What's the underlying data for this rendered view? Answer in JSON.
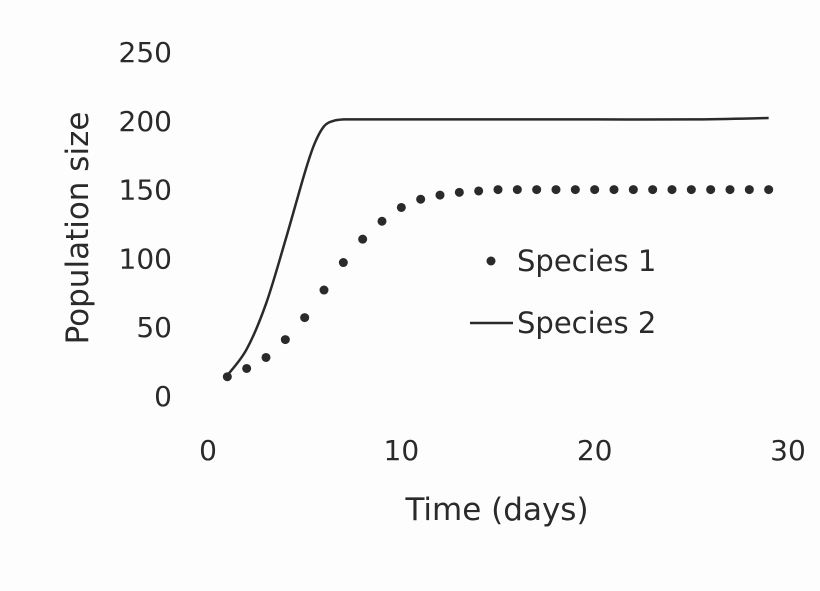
{
  "chart_data": {
    "type": "scatter",
    "title": "",
    "xlabel": "Time (days)",
    "ylabel": "Population size",
    "xlim": [
      0,
      30
    ],
    "ylim": [
      0,
      250
    ],
    "xticks": [
      0,
      10,
      20,
      30
    ],
    "yticks": [
      0,
      50,
      100,
      150,
      200,
      250
    ],
    "grid": false,
    "legend_position": "center-right",
    "series": [
      {
        "name": "Species 1",
        "style": "dots",
        "color": "#2a2a2a",
        "x": [
          1,
          2,
          3,
          4,
          5,
          6,
          7,
          8,
          9,
          10,
          11,
          12,
          13,
          14,
          15,
          16,
          17,
          18,
          19,
          20,
          21,
          22,
          23,
          24,
          25,
          26,
          27,
          28,
          29
        ],
        "y": [
          14,
          20,
          28,
          41,
          57,
          77,
          97,
          114,
          127,
          137,
          143,
          146,
          148,
          149,
          150,
          150,
          150,
          150,
          150,
          150,
          150,
          150,
          150,
          150,
          150,
          150,
          150,
          150,
          150
        ]
      },
      {
        "name": "Species 2",
        "style": "line",
        "color": "#2a2a2a",
        "x": [
          1,
          2,
          3,
          4,
          5,
          5.5,
          6,
          6.5,
          7,
          8,
          10,
          15,
          20,
          25,
          29
        ],
        "y": [
          15,
          34,
          67,
          113,
          162,
          183,
          196,
          200,
          201,
          201,
          201,
          201,
          201,
          201,
          202
        ]
      }
    ]
  }
}
